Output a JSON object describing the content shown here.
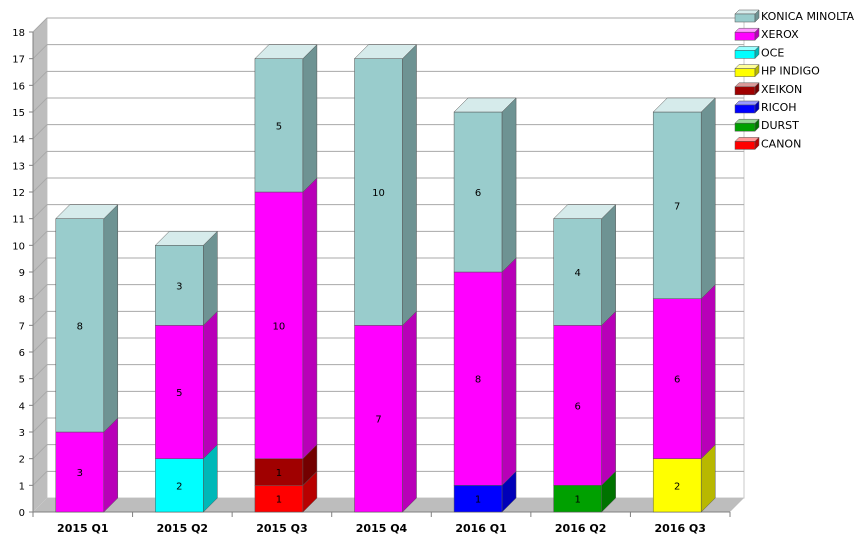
{
  "chart_data": {
    "type": "bar",
    "stacked": true,
    "three_d": true,
    "categories": [
      "2015 Q1",
      "2015 Q2",
      "2015 Q3",
      "2015 Q4",
      "2016 Q1",
      "2016 Q2",
      "2016 Q3"
    ],
    "ylim": [
      0,
      18
    ],
    "yticks": [
      0,
      1,
      2,
      3,
      4,
      5,
      6,
      7,
      8,
      9,
      10,
      11,
      12,
      13,
      14,
      15,
      16,
      17,
      18
    ],
    "grid": true,
    "legend_position": "top-right",
    "series": [
      {
        "name": "CANON",
        "color": "#ff0000",
        "values": [
          0,
          0,
          1,
          0,
          0,
          0,
          0
        ]
      },
      {
        "name": "DURST",
        "color": "#00a000",
        "values": [
          0,
          0,
          0,
          0,
          0,
          1,
          0
        ]
      },
      {
        "name": "RICOH",
        "color": "#0000ff",
        "values": [
          0,
          0,
          0,
          0,
          1,
          0,
          0
        ]
      },
      {
        "name": "XEIKON",
        "color": "#a00000",
        "values": [
          0,
          0,
          1,
          0,
          0,
          0,
          0
        ]
      },
      {
        "name": "HP INDIGO",
        "color": "#ffff00",
        "values": [
          0,
          0,
          0,
          0,
          0,
          0,
          2
        ]
      },
      {
        "name": "OCE",
        "color": "#00ffff",
        "values": [
          0,
          2,
          0,
          0,
          0,
          0,
          0
        ]
      },
      {
        "name": "XEROX",
        "color": "#ff00ff",
        "values": [
          3,
          5,
          10,
          7,
          8,
          6,
          6
        ]
      },
      {
        "name": "KONICA MINOLTA",
        "color": "#99cccc",
        "values": [
          8,
          3,
          5,
          10,
          6,
          4,
          7
        ]
      }
    ],
    "legend_order": [
      "KONICA MINOLTA",
      "XEROX",
      "OCE",
      "HP INDIGO",
      "XEIKON",
      "RICOH",
      "DURST",
      "CANON"
    ]
  }
}
